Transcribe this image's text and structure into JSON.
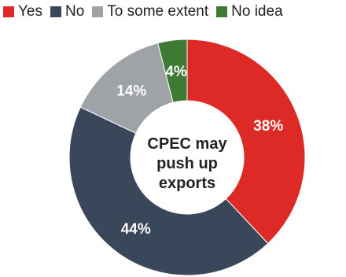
{
  "chart_data": {
    "type": "pie",
    "donut": true,
    "center_label": [
      "CPEC may",
      "push up",
      "exports"
    ],
    "slices": [
      {
        "name": "Yes",
        "value": 38,
        "label": "38%",
        "color": "#dd2a27"
      },
      {
        "name": "No",
        "value": 44,
        "label": "44%",
        "color": "#3a4659"
      },
      {
        "name": "To some extent",
        "value": 14,
        "label": "14%",
        "color": "#9fa2a6"
      },
      {
        "name": "No idea",
        "value": 4,
        "label": "4%",
        "color": "#3f7a35"
      }
    ],
    "legend_position": "top"
  }
}
